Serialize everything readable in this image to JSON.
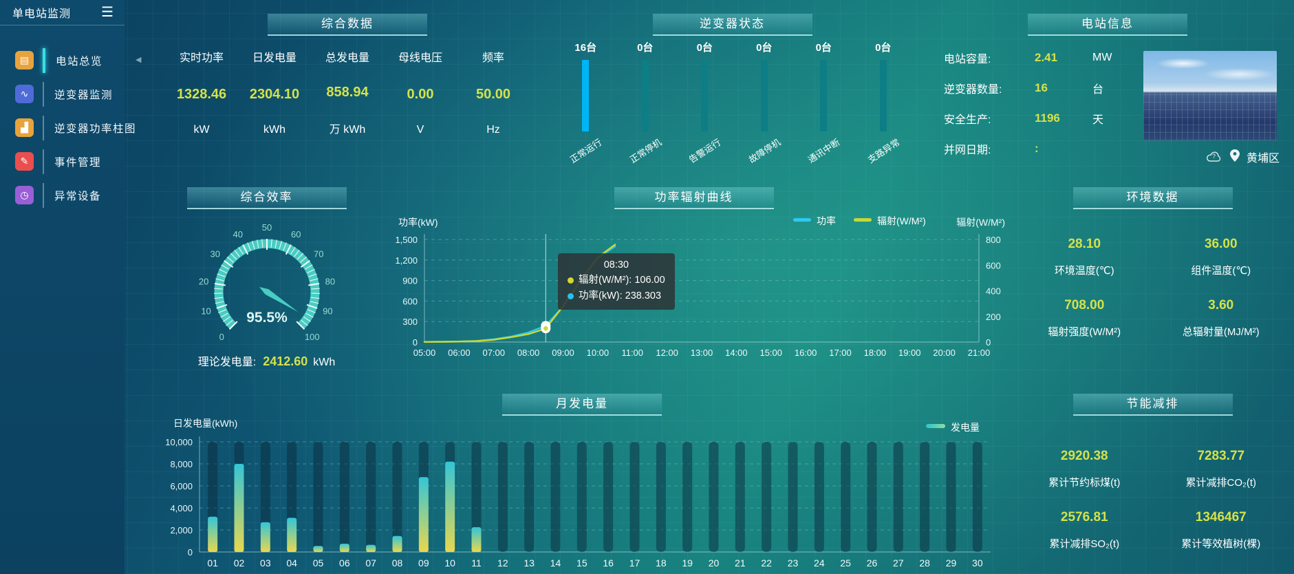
{
  "app_title": "单电站监测",
  "sidebar": {
    "items": [
      {
        "label": "电站总览",
        "icon": "doc",
        "color": "#e8a33d",
        "active": true
      },
      {
        "label": "逆变器监测",
        "icon": "monitor",
        "color": "#4f6bd8",
        "active": false
      },
      {
        "label": "逆变器功率柱图",
        "icon": "barchart",
        "color": "#e8a33d",
        "active": false
      },
      {
        "label": "事件管理",
        "icon": "event",
        "color": "#e94f4f",
        "active": false
      },
      {
        "label": "异常设备",
        "icon": "device",
        "color": "#9a5fd6",
        "active": false
      }
    ]
  },
  "panels": {
    "summary": {
      "title": "综合数据",
      "metrics": [
        {
          "label": "实时功率",
          "value": "1328.46",
          "unit": "kW"
        },
        {
          "label": "日发电量",
          "value": "2304.10",
          "unit": "kWh"
        },
        {
          "label": "总发电量",
          "value": "858.94",
          "unit": "万 kWh"
        },
        {
          "label": "母线电压",
          "value": "0.00",
          "unit": "V"
        },
        {
          "label": "频率",
          "value": "50.00",
          "unit": "Hz"
        }
      ]
    },
    "inverter_status": {
      "title": "逆变器状态",
      "bars": [
        {
          "count": "16台",
          "label": "正常运行",
          "highlight": true
        },
        {
          "count": "0台",
          "label": "正常停机",
          "highlight": false
        },
        {
          "count": "0台",
          "label": "告警运行",
          "highlight": false
        },
        {
          "count": "0台",
          "label": "故障停机",
          "highlight": false
        },
        {
          "count": "0台",
          "label": "通讯中断",
          "highlight": false
        },
        {
          "count": "0台",
          "label": "支路异常",
          "highlight": false
        }
      ]
    },
    "station_info": {
      "title": "电站信息",
      "rows": [
        {
          "label": "电站容量:",
          "value": "2.41",
          "unit": "MW"
        },
        {
          "label": "逆变器数量:",
          "value": "16",
          "unit": "台"
        },
        {
          "label": "安全生产:",
          "value": "1196",
          "unit": "天"
        },
        {
          "label": "并网日期:",
          "value": ":",
          "unit": ""
        }
      ],
      "location": "黄埔区"
    },
    "efficiency": {
      "title": "综合效率",
      "footer_label": "理论发电量:",
      "footer_value": "2412.60",
      "footer_unit": "kWh"
    },
    "power_curve": {
      "title": "功率辐射曲线"
    },
    "environment": {
      "title": "环境数据",
      "cells": [
        {
          "value": "28.10",
          "label": "环境温度(℃)"
        },
        {
          "value": "36.00",
          "label": "组件温度(℃)"
        },
        {
          "value": "708.00",
          "label": "辐射强度(W/M²)"
        },
        {
          "value": "3.60",
          "label": "总辐射量(MJ/M²)"
        }
      ]
    },
    "monthly": {
      "title": "月发电量"
    },
    "energy_saving": {
      "title": "节能减排",
      "cells": [
        {
          "value": "2920.38",
          "label": "累计节约标煤(t)"
        },
        {
          "value": "7283.77",
          "label": "累计减排CO₂(t)"
        },
        {
          "value": "2576.81",
          "label": "累计减排SO₂(t)"
        },
        {
          "value": "1346467",
          "label": "累计等效植树(棵)"
        }
      ]
    }
  },
  "chart_data": [
    {
      "id": "inverter_status",
      "type": "bar",
      "categories": [
        "正常运行",
        "正常停机",
        "告警运行",
        "故障停机",
        "通讯中断",
        "支路异常"
      ],
      "values": [
        16,
        0,
        0,
        0,
        0,
        0
      ],
      "colors": {
        "highlight": "#00b5f5",
        "normal": "#0d7e86"
      }
    },
    {
      "id": "efficiency_gauge",
      "type": "gauge",
      "min": 0,
      "max": 100,
      "major_tick": 10,
      "value": 95.5,
      "label": "95.5%",
      "color": "#4accc2"
    },
    {
      "id": "power_radiation",
      "type": "line",
      "title": "功率辐射曲线",
      "x_range": [
        5,
        21
      ],
      "x_ticks": [
        "05:00",
        "06:00",
        "07:00",
        "08:00",
        "09:00",
        "10:00",
        "11:00",
        "12:00",
        "13:00",
        "14:00",
        "15:00",
        "16:00",
        "17:00",
        "18:00",
        "19:00",
        "20:00",
        "21:00"
      ],
      "left_axis": {
        "name": "功率(kW)",
        "min": 0,
        "max": 1500,
        "ticks": [
          "0",
          "300",
          "600",
          "900",
          "1,200",
          "1,500"
        ]
      },
      "right_axis": {
        "name": "辐射(W/M²)",
        "min": 0,
        "max": 800,
        "ticks": [
          "0",
          "200",
          "400",
          "600",
          "800"
        ]
      },
      "series": [
        {
          "name": "功率",
          "color": "#2fc8f0",
          "axis": "left",
          "x": [
            5,
            5.5,
            6,
            6.5,
            7,
            7.5,
            8,
            8.5,
            9,
            9.5,
            10,
            10.5
          ],
          "y": [
            2,
            4,
            8,
            15,
            40,
            80,
            140,
            238.303,
            520,
            900,
            1230,
            1400
          ]
        },
        {
          "name": "辐射(W/M²)",
          "color": "#c9d832",
          "axis": "right",
          "x": [
            5,
            5.5,
            6,
            6.5,
            7,
            7.5,
            8,
            8.5,
            9,
            9.5,
            10,
            10.5
          ],
          "y": [
            1,
            2,
            4,
            8,
            18,
            38,
            62,
            106,
            280,
            480,
            660,
            760
          ]
        }
      ],
      "tooltip": {
        "time": "08:30",
        "x": 8.5,
        "items": [
          {
            "color": "#d6d929",
            "text": "辐射(W/M²): 106.00"
          },
          {
            "color": "#27c0f2",
            "text": "功率(kW): 238.303"
          }
        ]
      }
    },
    {
      "id": "monthly_generation",
      "type": "bar",
      "title": "月发电量",
      "legend": "发电量",
      "ylabel": "日发电量(kWh)",
      "categories": [
        "01",
        "02",
        "03",
        "04",
        "05",
        "06",
        "07",
        "08",
        "09",
        "10",
        "11",
        "12",
        "13",
        "14",
        "15",
        "16",
        "17",
        "18",
        "19",
        "20",
        "21",
        "22",
        "23",
        "24",
        "25",
        "26",
        "27",
        "28",
        "29",
        "30"
      ],
      "values": [
        3200,
        8000,
        2700,
        3100,
        550,
        750,
        650,
        1450,
        6800,
        8200,
        2250,
        0,
        0,
        0,
        0,
        0,
        0,
        0,
        0,
        0,
        0,
        0,
        0,
        0,
        0,
        0,
        0,
        0,
        0,
        0
      ],
      "ylim": [
        0,
        10000
      ],
      "yticks": [
        "0",
        "2,000",
        "4,000",
        "6,000",
        "8,000",
        "10,000"
      ]
    }
  ]
}
